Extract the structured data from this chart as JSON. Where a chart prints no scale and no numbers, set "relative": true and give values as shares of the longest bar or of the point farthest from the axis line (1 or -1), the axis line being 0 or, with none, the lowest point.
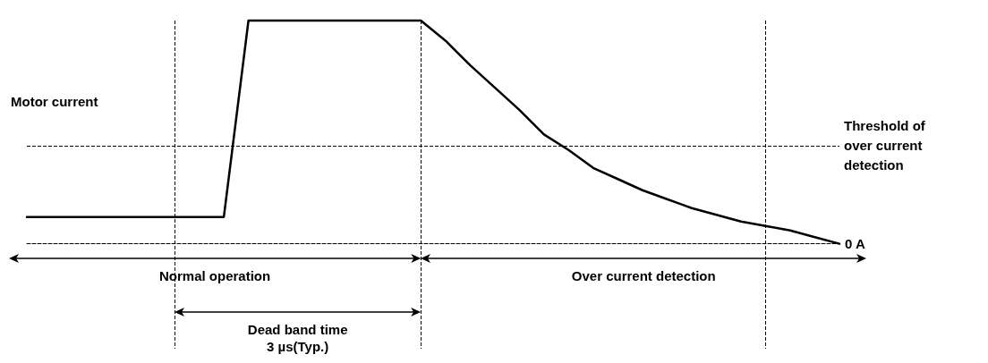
{
  "chart_data": {
    "type": "line",
    "relative": true,
    "ylabel": "Motor current",
    "marker": "none",
    "line_style": "solid",
    "grid": "x",
    "categories": [
      null,
      null,
      null,
      null,
      null,
      null,
      null,
      null,
      null,
      null,
      null,
      null,
      null,
      null,
      null,
      null,
      null,
      null,
      null,
      null,
      null,
      null,
      null,
      null,
      null,
      null,
      null,
      null,
      null,
      null,
      null,
      null,
      null,
      null
    ],
    "series": [
      {
        "color": "#000000",
        "values": [
          0.12,
          0.12,
          0.12,
          0.12,
          0.12,
          0.12,
          0.12,
          0.12,
          0.12,
          1,
          1,
          1,
          1,
          1,
          1,
          1,
          1,
          0.91,
          0.8,
          0.7,
          0.6,
          0.49,
          0.42,
          0.34,
          0.29,
          0.24,
          0.2,
          0.16,
          0.13,
          0.1,
          0.08,
          0.06,
          0.03,
          0
        ]
      }
    ],
    "ref_lines": [
      {
        "axis": "y",
        "value": 0.44,
        "label": "Threshold of over current detection",
        "line_style": "dashed",
        "color": "#000000"
      }
    ],
    "annotations": [
      "0 A",
      "Normal operation",
      "Over current detection",
      "Dead band time 3 µs(Typ.)"
    ]
  }
}
